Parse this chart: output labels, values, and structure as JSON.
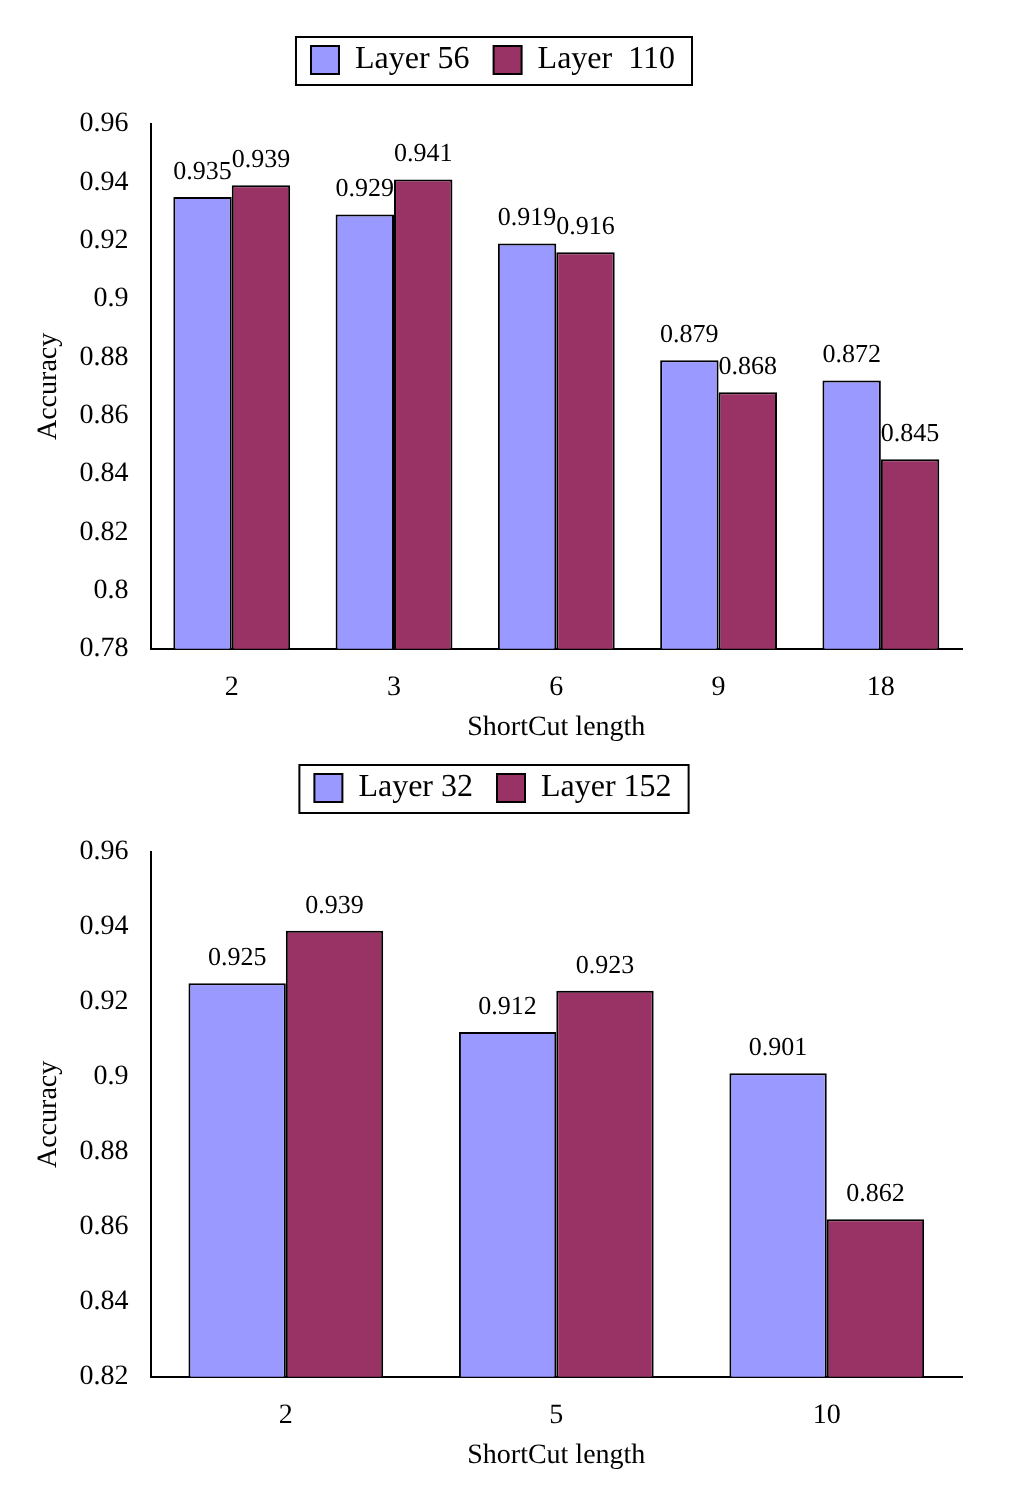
{
  "chart_data": [
    {
      "type": "bar",
      "xlabel": "ShortCut length",
      "ylabel": "Accuracy",
      "categories": [
        "2",
        "3",
        "6",
        "9",
        "18"
      ],
      "series": [
        {
          "name": "Layer 56",
          "color": "#9999ff",
          "values": [
            0.935,
            0.929,
            0.919,
            0.879,
            0.872
          ]
        },
        {
          "name": "Layer  110",
          "color": "#993366",
          "values": [
            0.939,
            0.941,
            0.916,
            0.868,
            0.845
          ]
        }
      ],
      "ylim": [
        0.78,
        0.96
      ],
      "yticks": [
        0.78,
        0.8,
        0.82,
        0.84,
        0.86,
        0.88,
        0.9,
        0.92,
        0.94,
        0.96
      ],
      "legend": "top",
      "data_labels": true
    },
    {
      "type": "bar",
      "xlabel": "ShortCut length",
      "ylabel": "Accuracy",
      "categories": [
        "2",
        "5",
        "10"
      ],
      "series": [
        {
          "name": "Layer 32",
          "color": "#9999ff",
          "values": [
            0.925,
            0.912,
            0.901
          ]
        },
        {
          "name": "Layer 152",
          "color": "#993366",
          "values": [
            0.939,
            0.923,
            0.862
          ]
        }
      ],
      "ylim": [
        0.82,
        0.96
      ],
      "yticks": [
        0.82,
        0.84,
        0.86,
        0.88,
        0.9,
        0.92,
        0.94,
        0.96
      ],
      "legend": "top",
      "data_labels": true
    }
  ]
}
